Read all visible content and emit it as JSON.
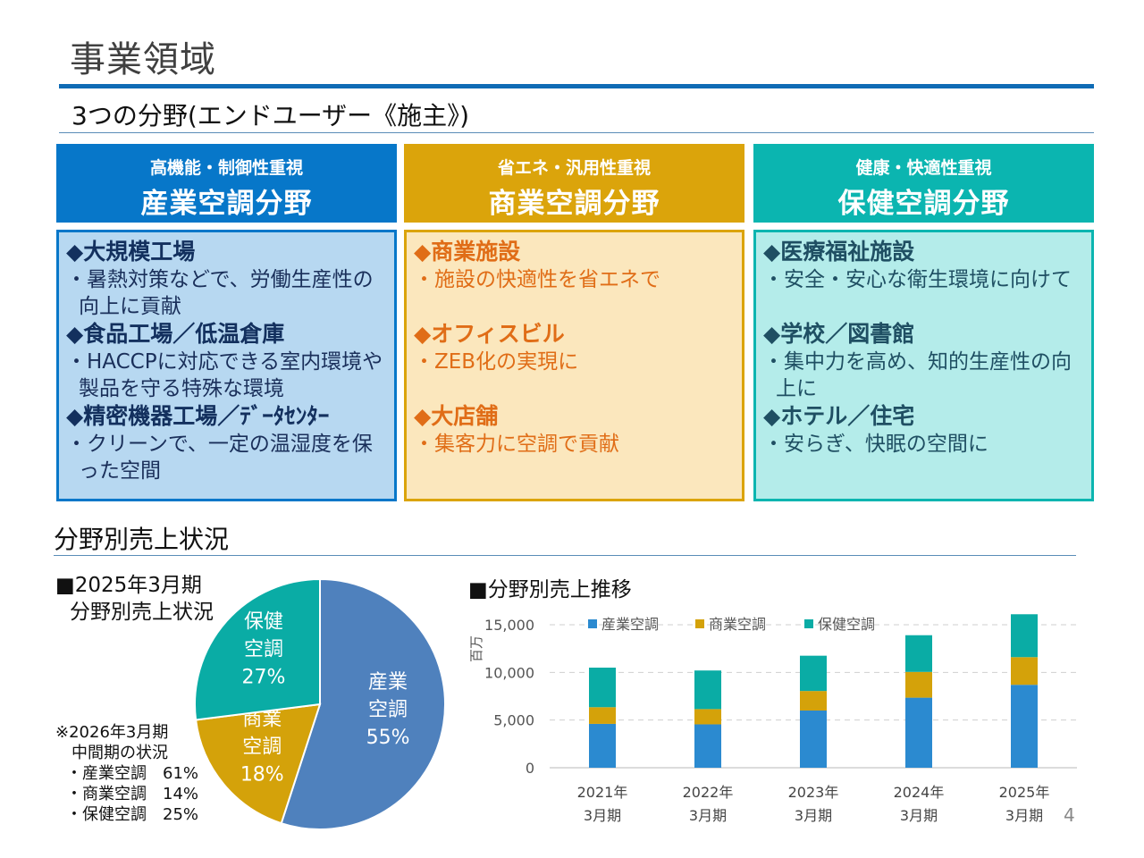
{
  "header": {
    "title": "事業領域",
    "subtitle": "3つの分野(エンドユーザー《施主》)"
  },
  "fields": [
    {
      "tagline": "高機能・制御性重視",
      "name": "産業空調分野",
      "color": "#0777c9",
      "items": [
        {
          "heading": "◆大規模工場",
          "desc": "・暑熱対策などで、労働生産性の向上に貢献"
        },
        {
          "heading": "◆食品工場／低温倉庫",
          "desc": "・HACCPに対応できる室内環境や製品を守る特殊な環境"
        },
        {
          "heading": "◆精密機器工場／ﾃﾞｰﾀｾﾝﾀｰ",
          "desc": "・クリーンで、一定の温湿度を保った空間"
        }
      ]
    },
    {
      "tagline": "省エネ・汎用性重視",
      "name": "商業空調分野",
      "color": "#dba40b",
      "items": [
        {
          "heading": "◆商業施設",
          "desc": "・施設の快適性を省エネで"
        },
        {
          "heading": "◆オフィスビル",
          "desc": "・ZEB化の実現に"
        },
        {
          "heading": "◆大店舗",
          "desc": "・集客力に空調で貢献"
        }
      ]
    },
    {
      "tagline": "健康・快適性重視",
      "name": "保健空調分野",
      "color": "#0bb5b0",
      "items": [
        {
          "heading": "◆医療福祉施設",
          "desc": "・安全・安心な衛生環境に向けて"
        },
        {
          "heading": "◆学校／図書館",
          "desc": "・集中力を高め、知的生産性の向上に"
        },
        {
          "heading": "◆ホテル／住宅",
          "desc": "・安らぎ、快眠の空間に"
        }
      ]
    }
  ],
  "sales": {
    "title": "分野別売上状況",
    "pie_caption_line1": "■2025年3月期",
    "pie_caption_line2": "分野別売上状況",
    "note": {
      "line1": "※2026年3月期",
      "line2": "中間期の状況",
      "rows": [
        "・産業空調　61%",
        "・商業空調　14%",
        "・保健空調　25%"
      ]
    },
    "bar_title": "■分野別売上推移"
  },
  "page_number": "4",
  "chart_data": [
    {
      "type": "pie",
      "title": "2025年3月期 分野別売上状況",
      "slices": [
        {
          "label": "産業空調",
          "label_lines": [
            "産業",
            "空調"
          ],
          "value": 55,
          "display": "55%",
          "color": "#4f81bd"
        },
        {
          "label": "商業空調",
          "label_lines": [
            "商業",
            "空調"
          ],
          "value": 18,
          "display": "18%",
          "color": "#d4a20a"
        },
        {
          "label": "保健空調",
          "label_lines": [
            "保健",
            "空調"
          ],
          "value": 27,
          "display": "27%",
          "color": "#0aaca5"
        }
      ],
      "start": "12 o'clock",
      "direction": "clockwise"
    },
    {
      "type": "bar",
      "stacked": true,
      "title": "分野別売上推移",
      "categories": [
        [
          "2021年",
          "3月期"
        ],
        [
          "2022年",
          "3月期"
        ],
        [
          "2023年",
          "3月期"
        ],
        [
          "2024年",
          "3月期"
        ],
        [
          "2025年",
          "3月期"
        ]
      ],
      "series": [
        {
          "name": "産業空調",
          "color": "#2b8ad0",
          "values": [
            4600,
            4550,
            6000,
            7350,
            8700
          ]
        },
        {
          "name": "商業空調",
          "color": "#d4a20a",
          "values": [
            1750,
            1600,
            2050,
            2700,
            2900
          ]
        },
        {
          "name": "保健空調",
          "color": "#0aaca5",
          "values": [
            4150,
            4050,
            3700,
            3850,
            4500
          ]
        }
      ],
      "ylabel": "百万",
      "ylim": [
        0,
        15000
      ],
      "yticks": [
        0,
        5000,
        10000,
        15000
      ],
      "ytick_labels": [
        "0",
        "5,000",
        "10,000",
        "15,000"
      ],
      "grid": true,
      "legend": "top"
    }
  ]
}
